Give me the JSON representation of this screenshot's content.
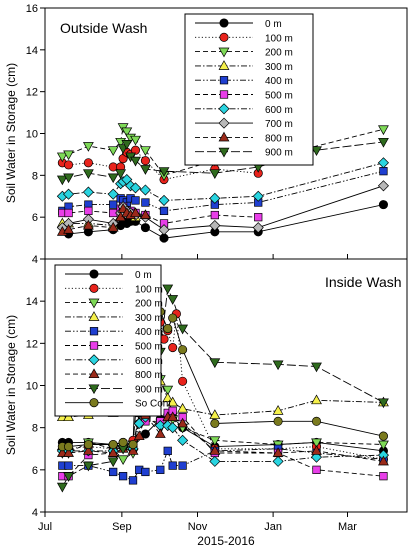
{
  "figure": {
    "ylabel": "Soil Water in Storage (cm)",
    "xlabel": "2015-2016",
    "x_tick_labels": [
      "Jul",
      "Sep",
      "Nov",
      "Jan",
      "Mar"
    ]
  },
  "chart_data": [
    {
      "type": "line",
      "panel": "top",
      "title": "Outside Wash",
      "ylim": [
        4,
        16
      ],
      "yticks": [
        4,
        6,
        8,
        10,
        12,
        14,
        16
      ],
      "xlim": [
        "2015-07-01",
        "2016-04-18"
      ],
      "legend_position": "top-right",
      "series": [
        {
          "name": "0 m",
          "marker": "circle",
          "color": "#000000",
          "dash": "solid",
          "x": [
            "2015-07-20",
            "2015-08-05",
            "2015-08-25",
            "2015-08-31",
            "2015-09-02",
            "2015-09-05",
            "2015-09-08",
            "2015-09-12",
            "2015-09-20",
            "2015-10-05",
            "2015-11-15",
            "2015-12-20",
            "2016-03-30"
          ],
          "y": [
            5.2,
            5.3,
            5.4,
            5.6,
            5.8,
            5.7,
            5.8,
            5.8,
            5.5,
            5.0,
            5.3,
            5.3,
            6.6
          ]
        },
        {
          "name": "100 m",
          "marker": "circle",
          "color": "#e8231c",
          "dash": "dot",
          "x": [
            "2015-07-15",
            "2015-07-20",
            "2015-08-05",
            "2015-08-25",
            "2015-08-31",
            "2015-09-02",
            "2015-09-05",
            "2015-09-08",
            "2015-09-12",
            "2015-09-20",
            "2015-10-05",
            "2015-11-15",
            "2015-12-20"
          ],
          "y": [
            8.6,
            8.5,
            8.6,
            8.4,
            8.4,
            8.8,
            9.1,
            9.0,
            9.2,
            8.7,
            7.8,
            8.3,
            8.1
          ]
        },
        {
          "name": "200 m",
          "marker": "triangle-down",
          "color": "#7ed957",
          "dash": "dash",
          "x": [
            "2015-07-15",
            "2015-07-20",
            "2015-08-05",
            "2015-08-25",
            "2015-08-31",
            "2015-09-02",
            "2015-09-05",
            "2015-09-08",
            "2015-09-12",
            "2015-09-20",
            "2015-10-05",
            "2015-11-15",
            "2015-12-20",
            "2016-03-30"
          ],
          "y": [
            8.9,
            9.0,
            9.4,
            9.2,
            9.6,
            10.3,
            10.1,
            9.8,
            9.7,
            9.2,
            8.0,
            8.7,
            8.7,
            10.2
          ]
        },
        {
          "name": "300 m",
          "marker": "triangle-up",
          "color": "#f5f04b",
          "dash": "dashdot",
          "x": [
            "2015-07-15",
            "2015-07-20",
            "2015-08-05",
            "2015-08-25",
            "2015-08-31",
            "2015-09-02",
            "2015-09-05",
            "2015-09-08",
            "2015-09-12",
            "2015-09-20"
          ],
          "y": [
            5.7,
            5.7,
            5.7,
            5.6,
            6.0,
            6.5,
            6.3,
            6.1,
            6.0,
            6.1
          ]
        },
        {
          "name": "400 m",
          "marker": "square",
          "color": "#1f3fd1",
          "dash": "dashdotdot",
          "x": [
            "2015-07-15",
            "2015-07-20",
            "2015-08-05",
            "2015-08-25",
            "2015-08-31",
            "2015-09-02",
            "2015-09-05",
            "2015-09-08",
            "2015-09-12",
            "2015-09-20",
            "2015-10-05",
            "2015-11-15",
            "2015-12-20",
            "2016-03-30"
          ],
          "y": [
            6.3,
            6.5,
            6.6,
            6.6,
            6.9,
            6.8,
            6.7,
            6.9,
            6.8,
            6.7,
            6.3,
            6.6,
            6.7,
            8.2
          ]
        },
        {
          "name": "500 m",
          "marker": "square",
          "color": "#e83ee8",
          "dash": "dash",
          "x": [
            "2015-07-15",
            "2015-07-20",
            "2015-08-05",
            "2015-08-25",
            "2015-08-31",
            "2015-09-02",
            "2015-09-05",
            "2015-09-08",
            "2015-09-12",
            "2015-09-20",
            "2015-10-05",
            "2015-11-15",
            "2015-12-20"
          ],
          "y": [
            6.2,
            6.2,
            6.3,
            6.2,
            6.4,
            6.5,
            6.3,
            6.3,
            6.2,
            6.1,
            5.7,
            6.1,
            6.0
          ]
        },
        {
          "name": "600 m",
          "marker": "diamond",
          "color": "#29d4e0",
          "dash": "dashdot",
          "x": [
            "2015-07-15",
            "2015-07-20",
            "2015-08-05",
            "2015-08-25",
            "2015-08-31",
            "2015-09-02",
            "2015-09-05",
            "2015-09-08",
            "2015-09-12",
            "2015-09-20",
            "2015-10-05",
            "2015-11-15",
            "2015-12-20",
            "2016-03-30"
          ],
          "y": [
            7.0,
            7.1,
            7.2,
            7.1,
            7.6,
            7.7,
            7.8,
            7.5,
            7.4,
            7.3,
            6.8,
            6.9,
            7.0,
            8.6
          ]
        },
        {
          "name": "700 m",
          "marker": "diamond",
          "color": "#b8b8b8",
          "dash": "solid",
          "x": [
            "2015-07-15",
            "2015-07-20",
            "2015-08-05",
            "2015-08-25",
            "2015-08-31",
            "2015-09-02",
            "2015-09-05",
            "2015-09-08",
            "2015-09-12",
            "2015-09-20",
            "2015-10-05",
            "2015-11-15",
            "2015-12-20",
            "2016-03-30"
          ],
          "y": [
            5.5,
            5.7,
            5.9,
            5.7,
            6.2,
            6.5,
            6.3,
            6.2,
            6.1,
            6.0,
            5.4,
            5.6,
            5.5,
            7.5
          ]
        },
        {
          "name": "800 m",
          "marker": "triangle-up",
          "color": "#9b2a1a",
          "dash": "dash",
          "x": [
            "2015-07-15",
            "2015-07-20",
            "2015-08-05",
            "2015-08-25",
            "2015-08-31",
            "2015-09-02",
            "2015-09-05",
            "2015-09-08",
            "2015-09-12",
            "2015-09-20"
          ],
          "y": [
            5.3,
            5.4,
            5.6,
            5.5,
            6.0,
            6.4,
            6.2,
            6.1,
            6.2,
            6.1
          ]
        },
        {
          "name": "900 m",
          "marker": "triangle-down",
          "color": "#2f6b1e",
          "dash": "longdash",
          "x": [
            "2015-07-15",
            "2015-07-20",
            "2015-08-05",
            "2015-08-25",
            "2015-08-31",
            "2015-09-02",
            "2015-09-05",
            "2015-09-08",
            "2015-09-12",
            "2015-09-20",
            "2015-10-05",
            "2015-11-15",
            "2015-12-20",
            "2016-02-05",
            "2016-03-30"
          ],
          "y": [
            7.8,
            7.9,
            8.1,
            7.9,
            8.1,
            9.3,
            9.5,
            8.9,
            8.7,
            8.3,
            8.2,
            8.1,
            8.4,
            9.2,
            9.6
          ]
        }
      ]
    },
    {
      "type": "line",
      "panel": "bottom",
      "title": "Inside Wash",
      "ylim": [
        4,
        16
      ],
      "yticks": [
        4,
        6,
        8,
        10,
        12,
        14
      ],
      "xlim": [
        "2015-07-01",
        "2016-04-18"
      ],
      "legend_position": "top-left",
      "series": [
        {
          "name": "0 m",
          "marker": "circle",
          "color": "#000000",
          "dash": "solid",
          "x": [
            "2015-07-15",
            "2015-07-20",
            "2015-08-05",
            "2015-08-25",
            "2015-09-02",
            "2015-09-10",
            "2015-09-20",
            "2015-10-02",
            "2015-10-08",
            "2015-10-12",
            "2015-10-20",
            "2015-11-15",
            "2016-01-05",
            "2016-02-05",
            "2016-03-30"
          ],
          "y": [
            7.3,
            7.3,
            7.3,
            7.2,
            7.3,
            7.1,
            7.7,
            8.4,
            8.6,
            8.5,
            8.0,
            7.1,
            7.2,
            7.3,
            6.9
          ]
        },
        {
          "name": "100 m",
          "marker": "circle",
          "color": "#e8231c",
          "dash": "dot",
          "x": [
            "2015-07-15",
            "2015-07-20",
            "2015-08-05",
            "2015-08-25",
            "2015-09-02",
            "2015-09-10",
            "2015-09-15",
            "2015-09-20",
            "2015-10-02",
            "2015-10-05",
            "2015-10-08",
            "2015-10-12",
            "2015-10-15",
            "2015-10-20",
            "2015-11-15",
            "2016-01-05",
            "2016-02-05",
            "2016-03-30"
          ],
          "y": [
            7.0,
            7.0,
            7.1,
            7.0,
            7.1,
            7.4,
            8.2,
            12.9,
            13.0,
            12.2,
            12.6,
            11.8,
            13.4,
            10.2,
            7.0,
            7.0,
            7.1,
            6.5
          ]
        },
        {
          "name": "200 m",
          "marker": "triangle-down",
          "color": "#7ed957",
          "dash": "dash",
          "x": [
            "2015-07-15",
            "2015-07-20",
            "2015-08-05",
            "2015-08-25",
            "2015-09-02",
            "2015-09-10",
            "2015-09-15",
            "2015-09-20",
            "2015-10-02",
            "2015-10-08",
            "2015-10-12",
            "2015-10-20",
            "2015-11-15",
            "2016-01-05",
            "2016-02-05",
            "2016-03-30"
          ],
          "y": [
            6.8,
            6.8,
            7.3,
            7.0,
            6.5,
            6.8,
            8.7,
            11.4,
            10.3,
            9.8,
            8.4,
            8.0,
            7.4,
            7.2,
            7.3,
            7.2
          ]
        },
        {
          "name": "300 m",
          "marker": "triangle-up",
          "color": "#f5f04b",
          "dash": "dashdot",
          "x": [
            "2015-07-15",
            "2015-07-20",
            "2015-08-05",
            "2015-08-25",
            "2015-09-02",
            "2015-09-10",
            "2015-09-15",
            "2015-09-20",
            "2015-10-02",
            "2015-10-08",
            "2015-10-12",
            "2015-10-20",
            "2015-11-15",
            "2016-01-05",
            "2016-02-05",
            "2016-03-30"
          ],
          "y": [
            8.5,
            8.5,
            8.6,
            8.7,
            8.8,
            8.9,
            10.7,
            11.1,
            10.2,
            9.4,
            9.2,
            8.9,
            8.6,
            8.8,
            9.3,
            9.2
          ]
        },
        {
          "name": "400 m",
          "marker": "square",
          "color": "#1f3fd1",
          "dash": "dashdotdot",
          "x": [
            "2015-07-15",
            "2015-07-20",
            "2015-08-05",
            "2015-08-25",
            "2015-09-02",
            "2015-09-10",
            "2015-09-15",
            "2015-09-20",
            "2015-10-02",
            "2015-10-08",
            "2015-10-12",
            "2015-10-20",
            "2015-11-15",
            "2016-01-05",
            "2016-02-05",
            "2016-03-30"
          ],
          "y": [
            6.2,
            6.2,
            6.2,
            5.9,
            5.7,
            5.5,
            6.0,
            5.9,
            6.0,
            6.9,
            6.2,
            6.2,
            6.9,
            7.0,
            6.8,
            6.5
          ]
        },
        {
          "name": "500 m",
          "marker": "square",
          "color": "#e83ee8",
          "dash": "dash",
          "x": [
            "2015-07-15",
            "2015-07-20",
            "2015-08-05",
            "2015-08-25",
            "2015-09-02",
            "2015-09-10",
            "2015-09-15",
            "2015-09-20",
            "2015-10-02",
            "2015-10-08",
            "2015-10-12",
            "2015-10-20",
            "2015-11-15",
            "2016-01-05",
            "2016-02-05",
            "2016-03-30"
          ],
          "y": [
            5.7,
            5.7,
            6.7,
            6.8,
            7.2,
            7.1,
            8.7,
            8.3,
            8.3,
            8.7,
            8.8,
            8.5,
            6.8,
            6.8,
            6.0,
            5.7
          ]
        },
        {
          "name": "600 m",
          "marker": "diamond",
          "color": "#29d4e0",
          "dash": "dashdot",
          "x": [
            "2015-07-15",
            "2015-07-20",
            "2015-08-05",
            "2015-08-25",
            "2015-09-02",
            "2015-09-10",
            "2015-09-15",
            "2015-09-20",
            "2015-10-02",
            "2015-10-08",
            "2015-10-12",
            "2015-10-20",
            "2015-11-15",
            "2016-01-05",
            "2016-02-05",
            "2016-03-30"
          ],
          "y": [
            6.9,
            6.9,
            6.9,
            6.9,
            7.1,
            7.0,
            8.2,
            8.5,
            8.1,
            8.1,
            8.0,
            7.4,
            6.4,
            6.4,
            6.6,
            6.7
          ]
        },
        {
          "name": "800 m",
          "marker": "triangle-up",
          "color": "#9b2a1a",
          "dash": "dash",
          "x": [
            "2015-07-15",
            "2015-07-20",
            "2015-08-05",
            "2015-08-25",
            "2015-09-02",
            "2015-09-10",
            "2015-09-15",
            "2015-09-20",
            "2015-10-02",
            "2015-10-08",
            "2015-10-12",
            "2015-10-20",
            "2015-11-15",
            "2016-01-05",
            "2016-02-05",
            "2016-03-30"
          ],
          "y": [
            6.8,
            6.8,
            6.9,
            6.8,
            7.0,
            6.9,
            7.6,
            8.6,
            7.7,
            8.5,
            8.5,
            8.2,
            6.9,
            6.8,
            6.9,
            6.4
          ]
        },
        {
          "name": "900 m",
          "marker": "triangle-down",
          "color": "#2f6b1e",
          "dash": "longdash",
          "x": [
            "2015-07-15",
            "2015-07-20",
            "2015-08-05",
            "2015-08-25",
            "2015-09-02",
            "2015-09-10",
            "2015-09-15",
            "2015-09-20",
            "2015-10-02",
            "2015-10-08",
            "2015-10-12",
            "2015-10-20",
            "2015-11-15",
            "2016-01-05",
            "2016-02-05",
            "2016-03-30"
          ],
          "y": [
            5.2,
            5.7,
            6.2,
            6.4,
            7.0,
            7.2,
            10.7,
            13.3,
            11.6,
            14.6,
            14.1,
            12.7,
            11.1,
            11.0,
            10.9,
            9.2
          ]
        },
        {
          "name": "So Cont",
          "marker": "circle",
          "color": "#7a7a1e",
          "dash": "solid",
          "x": [
            "2015-07-15",
            "2015-07-20",
            "2015-08-05",
            "2015-08-25",
            "2015-09-02",
            "2015-09-10",
            "2015-09-15",
            "2015-09-20",
            "2015-10-02",
            "2015-10-08",
            "2015-10-12",
            "2015-10-20",
            "2015-11-15",
            "2016-01-05",
            "2016-02-05",
            "2016-03-30"
          ],
          "y": [
            7.1,
            7.1,
            7.2,
            7.2,
            7.3,
            7.2,
            15.2,
            14.1,
            13.5,
            12.7,
            13.2,
            11.7,
            8.2,
            8.3,
            8.3,
            7.6
          ]
        }
      ]
    }
  ]
}
